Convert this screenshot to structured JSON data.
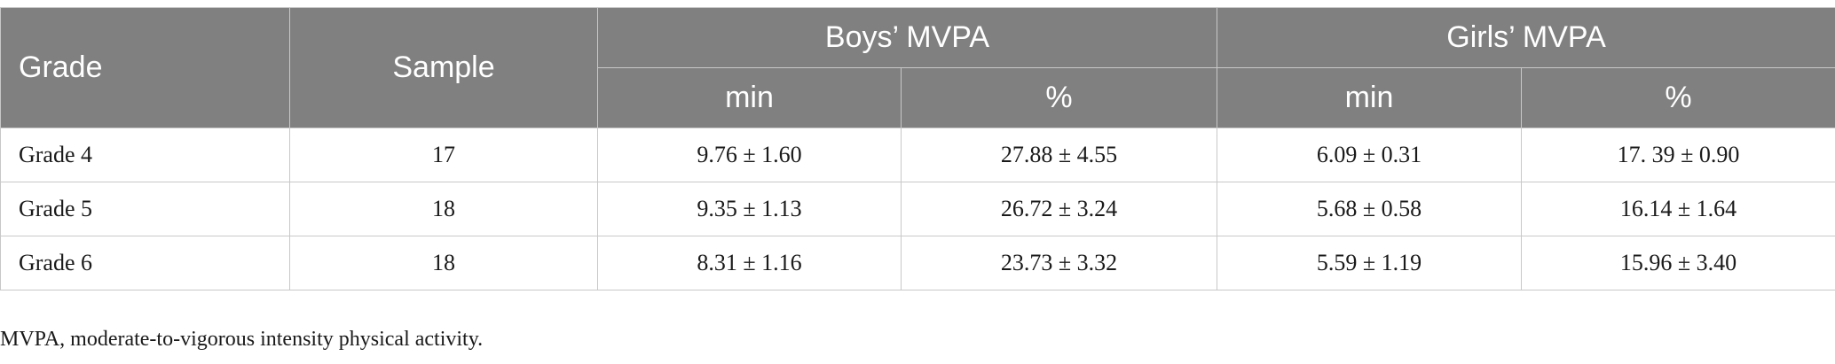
{
  "table": {
    "headers": {
      "grade": "Grade",
      "sample": "Sample",
      "boys_group": "Boys’ MVPA",
      "girls_group": "Girls’ MVPA",
      "boys_min": "min",
      "boys_pct": "%",
      "girls_min": "min",
      "girls_pct": "%"
    },
    "rows": [
      {
        "grade": "Grade 4",
        "sample": "17",
        "boys_min": "9.76 ± 1.60",
        "boys_pct": "27.88 ± 4.55",
        "girls_min": "6.09 ± 0.31",
        "girls_pct": "17. 39 ± 0.90"
      },
      {
        "grade": "Grade 5",
        "sample": "18",
        "boys_min": "9.35 ± 1.13",
        "boys_pct": "26.72 ± 3.24",
        "girls_min": "5.68 ± 0.58",
        "girls_pct": "16.14 ± 1.64"
      },
      {
        "grade": "Grade 6",
        "sample": "18",
        "boys_min": "8.31 ± 1.16",
        "boys_pct": "23.73 ± 3.32",
        "girls_min": "5.59 ± 1.19",
        "girls_pct": "15.96 ± 3.40"
      }
    ]
  },
  "footnote": "MVPA, moderate-to-vigorous intensity physical activity."
}
